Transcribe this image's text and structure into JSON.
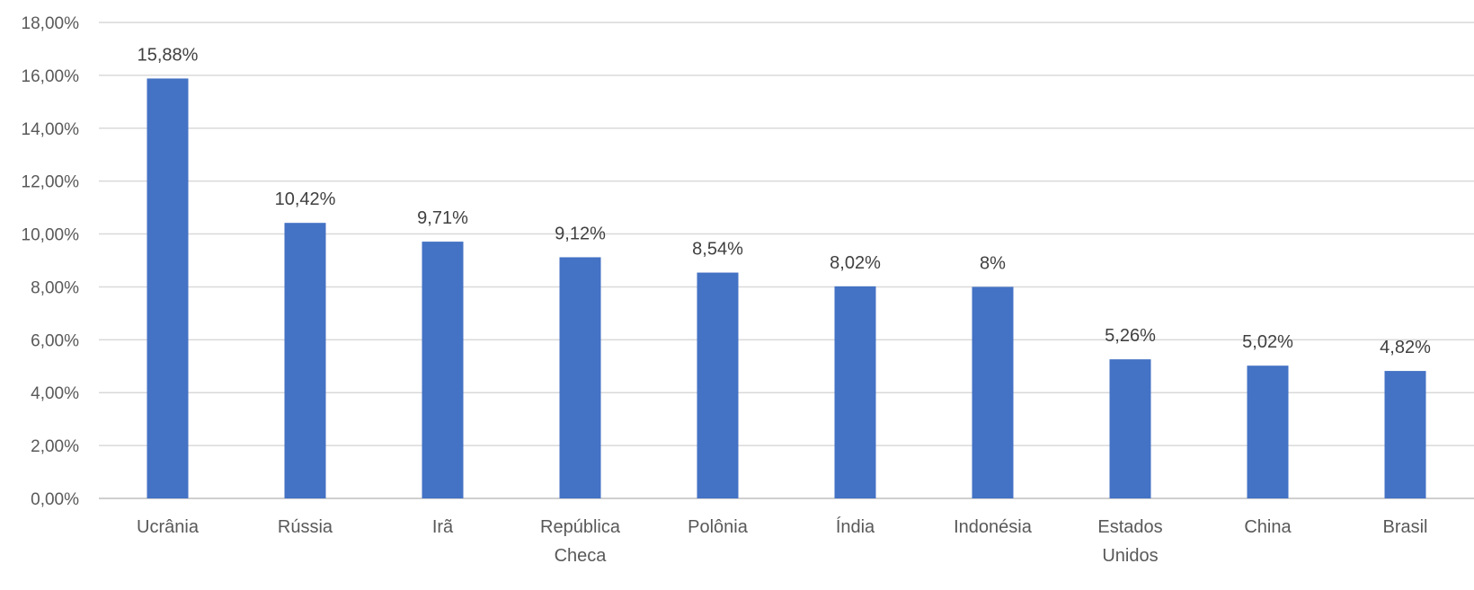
{
  "chart_data": {
    "type": "bar",
    "title": "",
    "xlabel": "",
    "ylabel": "",
    "categories": [
      [
        "Ucrânia"
      ],
      [
        "Rússia"
      ],
      [
        "Irã"
      ],
      [
        "República",
        "Checa"
      ],
      [
        "Polônia"
      ],
      [
        "Índia"
      ],
      [
        "Indonésia"
      ],
      [
        "Estados",
        "Unidos"
      ],
      [
        "China"
      ],
      [
        "Brasil"
      ]
    ],
    "values": [
      15.88,
      10.42,
      9.71,
      9.12,
      8.54,
      8.02,
      8.0,
      5.26,
      5.02,
      4.82
    ],
    "data_labels": [
      "15,88%",
      "10,42%",
      "9,71%",
      "9,12%",
      "8,54%",
      "8,02%",
      "8%",
      "5,26%",
      "5,02%",
      "4,82%"
    ],
    "ylim": [
      0,
      18
    ],
    "yticks": [
      0,
      2,
      4,
      6,
      8,
      10,
      12,
      14,
      16,
      18
    ],
    "ytick_labels": [
      "0,00%",
      "2,00%",
      "4,00%",
      "6,00%",
      "8,00%",
      "10,00%",
      "12,00%",
      "14,00%",
      "16,00%",
      "18,00%"
    ],
    "grid": true,
    "legend": "none",
    "bar_color": "#4472c4"
  }
}
